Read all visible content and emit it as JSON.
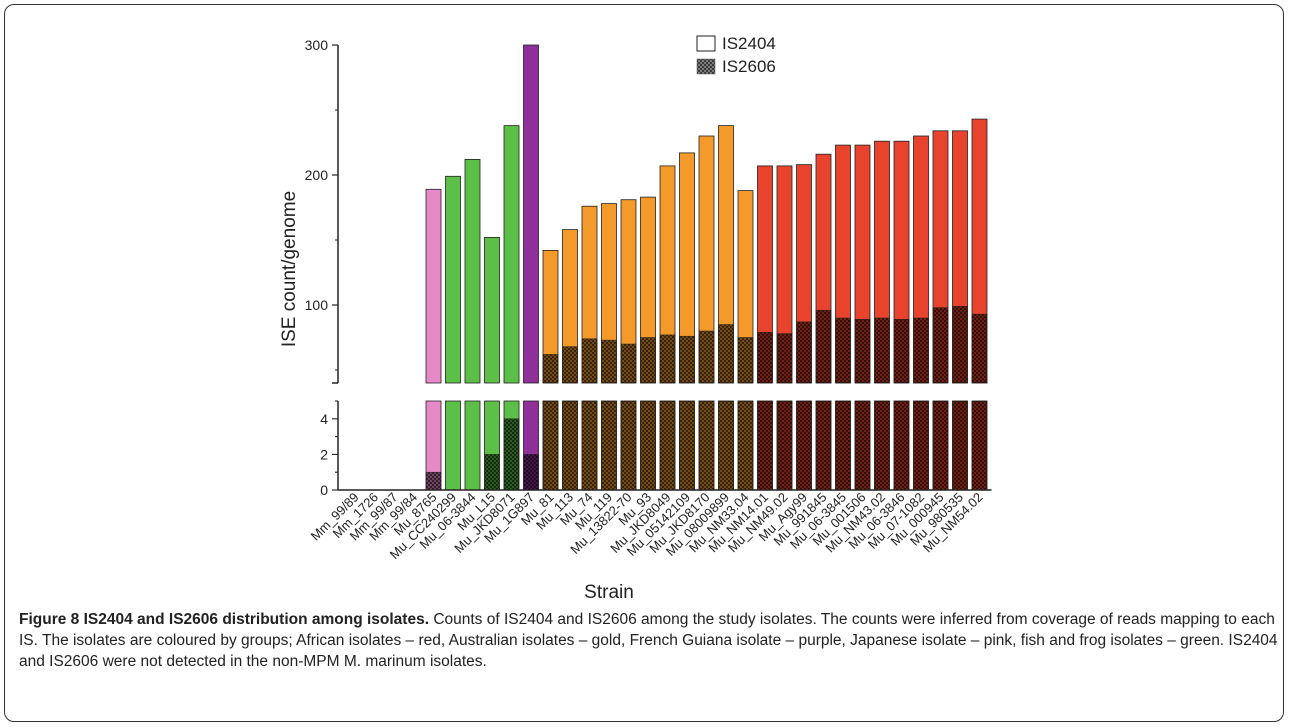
{
  "chart_data": {
    "type": "bar",
    "stacked": true,
    "ylabel": "ISE count/genome",
    "xlabel": "Strain",
    "y_axis_break": true,
    "ylim_lower": [
      0,
      5
    ],
    "ylim_upper": [
      40,
      300
    ],
    "yticks_lower": [
      "0",
      "2",
      "4"
    ],
    "yticks_upper": [
      "100",
      "200",
      "300"
    ],
    "legend": {
      "placement": "top",
      "entries": [
        {
          "label": "IS2404",
          "fill": "white"
        },
        {
          "label": "IS2606",
          "fill": "crosshatch"
        }
      ]
    },
    "group_colors": {
      "none": "#ffffff",
      "pink": "#e58ac6",
      "green": "#5cbf48",
      "purple": "#8e2f9a",
      "gold": "#f39a2a",
      "red": "#e8432c"
    },
    "categories": [
      "Mm_99/89",
      "Mm_1726",
      "Mm_99/87",
      "Mm_99/84",
      "Mu_8765",
      "Mu_CC240299",
      "Mu_06-3844",
      "Mu_L15",
      "Mu_JKD8071",
      "Mu_1G897",
      "Mu_81",
      "Mu_113",
      "Mu_74",
      "Mu_119",
      "Mu_13822-70",
      "Mu_93",
      "Mu_JKD8049",
      "Mu_05142109",
      "Mu_JKD8170",
      "Mu_08009899",
      "Mu_NM33.04",
      "Mu_NM14.01",
      "Mu_NM49.02",
      "Mu_Agy99",
      "Mu_991845",
      "Mu_06-3845",
      "Mu_001506",
      "Mu_NM43.02",
      "Mu_06-3846",
      "Mu_07-1082",
      "Mu_000945",
      "Mu_980535",
      "Mu_NM54.02"
    ],
    "groups": [
      "none",
      "none",
      "none",
      "none",
      "pink",
      "green",
      "green",
      "green",
      "green",
      "purple",
      "gold",
      "gold",
      "gold",
      "gold",
      "gold",
      "gold",
      "gold",
      "gold",
      "gold",
      "gold",
      "gold",
      "red",
      "red",
      "red",
      "red",
      "red",
      "red",
      "red",
      "red",
      "red",
      "red",
      "red",
      "red"
    ],
    "series": [
      {
        "name": "IS2404",
        "values": [
          0,
          0,
          0,
          0,
          188,
          199,
          212,
          150,
          234,
          298,
          80,
          90,
          102,
          105,
          111,
          108,
          130,
          141,
          150,
          153,
          113,
          128,
          129,
          121,
          120,
          133,
          134,
          136,
          137,
          140,
          136,
          135,
          150
        ]
      },
      {
        "name": "IS2606",
        "values": [
          0,
          0,
          0,
          0,
          1,
          0,
          0,
          2,
          4,
          2,
          62,
          68,
          74,
          73,
          70,
          75,
          77,
          76,
          80,
          85,
          75,
          79,
          78,
          87,
          96,
          90,
          89,
          90,
          89,
          90,
          98,
          99,
          93
        ]
      }
    ]
  },
  "caption": {
    "title": "Figure 8 IS2404 and IS2606 distribution among isolates.",
    "body": " Counts of IS2404 and IS2606 among the study isolates. The counts were inferred from coverage of reads mapping to each IS. The isolates are coloured by groups; African isolates – red, Australian isolates – gold, French Guiana isolate – purple, Japanese isolate – pink, fish and frog isolates – green. IS2404 and IS2606 were not detected in the non-MPM M. marinum isolates."
  }
}
